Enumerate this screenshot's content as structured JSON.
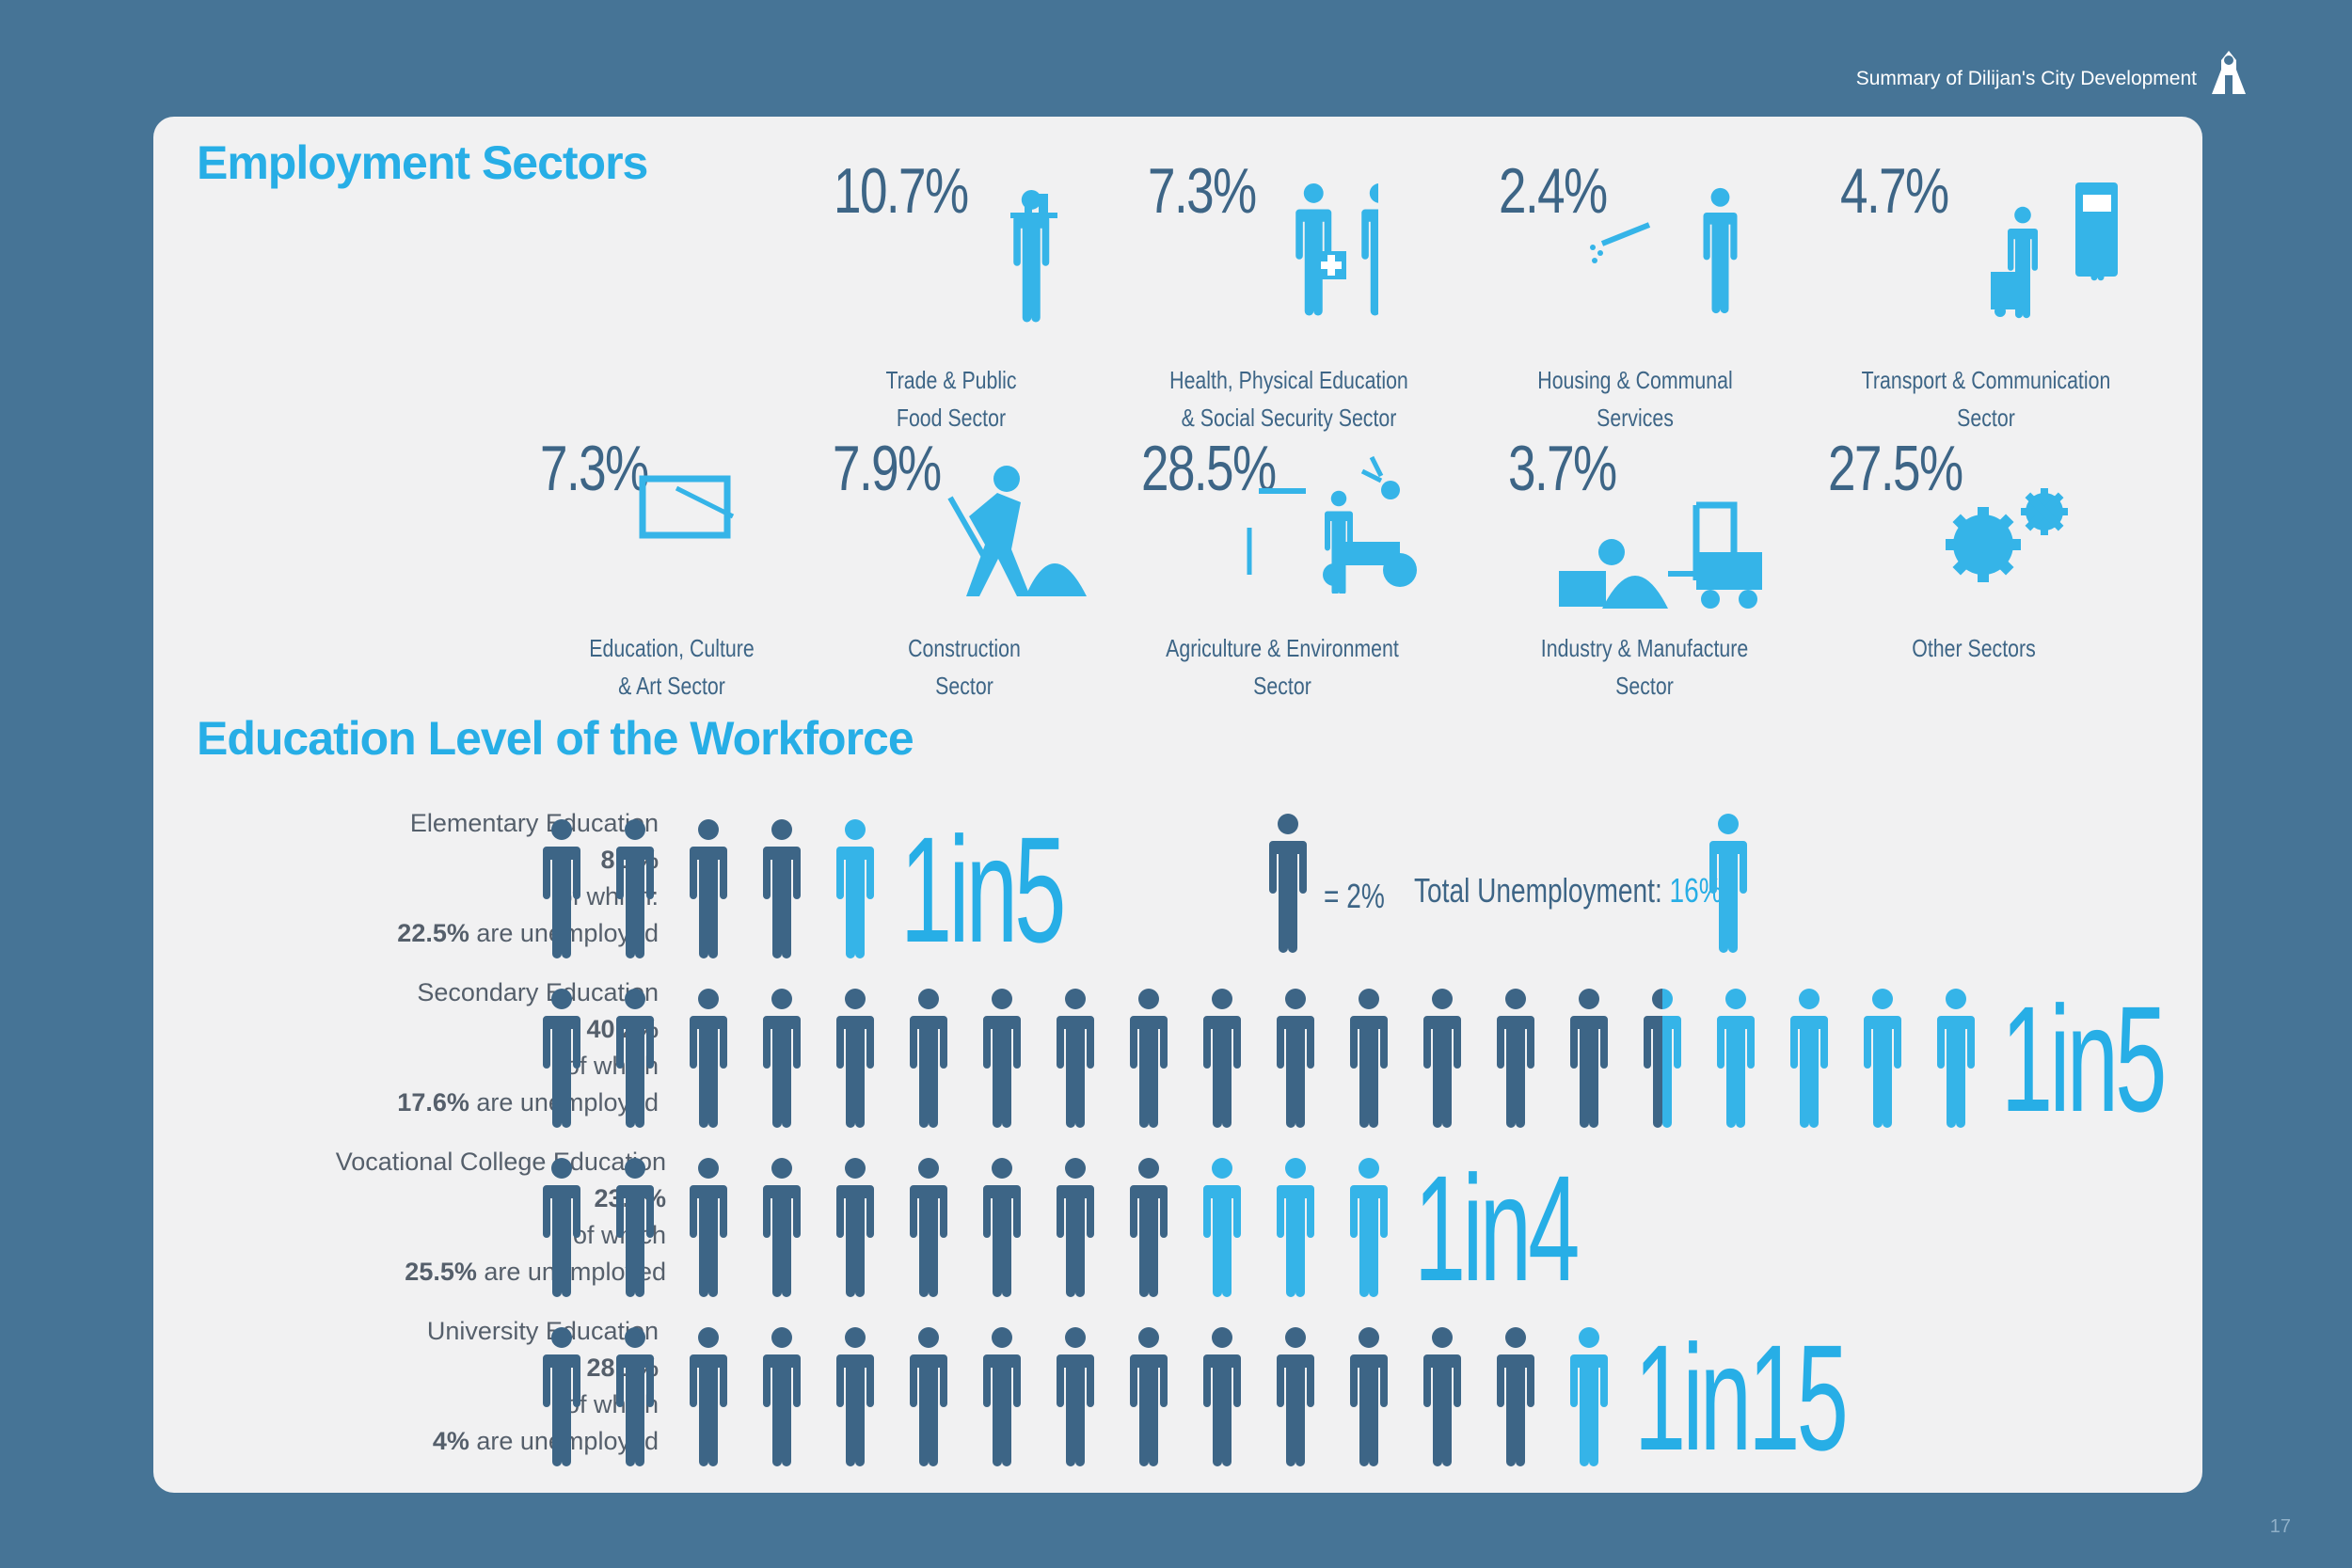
{
  "header": {
    "title": "Summary of Dilijan's City Development",
    "page_number": "17"
  },
  "colors": {
    "background": "#467496",
    "panel": "#f1f1f2",
    "accent": "#27aee6",
    "dark_person": "#3d6586",
    "light_person": "#35b4e8"
  },
  "employment": {
    "title": "Employment Sectors",
    "sectors": [
      {
        "pct": "10.7%",
        "label1": "Trade & Public",
        "label2": "Food Sector",
        "icon": "waiter-icon"
      },
      {
        "pct": "7.3%",
        "label1": "Health, Physical Education",
        "label2": "& Social Security Sector",
        "icon": "health-workers-icon"
      },
      {
        "pct": "2.4%",
        "label1": "Housing & Communal",
        "label2": "Services",
        "icon": "sprayer-worker-icon"
      },
      {
        "pct": "4.7%",
        "label1": "Transport & Communication",
        "label2": "Sector",
        "icon": "transport-worker-icon"
      },
      {
        "pct": "7.3%",
        "label1": "Education, Culture",
        "label2": "& Art Sector",
        "icon": "teacher-icon"
      },
      {
        "pct": "7.9%",
        "label1": "Construction",
        "label2": "Sector",
        "icon": "digger-icon"
      },
      {
        "pct": "28.5%",
        "label1": "Agriculture & Environment",
        "label2": "Sector",
        "icon": "farmer-tractor-icon"
      },
      {
        "pct": "3.7%",
        "label1": "Industry & Manufacture",
        "label2": "Sector",
        "icon": "forklift-icon"
      },
      {
        "pct": "27.5%",
        "label1": "Other Sectors",
        "label2": "",
        "icon": "gears-icon"
      }
    ]
  },
  "education": {
    "title": "Education Level of the Workforce",
    "legend": {
      "unit": "= 2%",
      "total_label": "Total Unemployment: ",
      "total_value": "16%"
    },
    "rows": [
      {
        "name": "Elementary Education",
        "pct": "8.1%",
        "which": "of which:",
        "unemp_pct": "22.5%",
        "unemp_text": " are unemployed",
        "ratio": "1in5",
        "dark": 4,
        "light": 1,
        "split": false
      },
      {
        "name": "Secondary Education",
        "pct": "40.2%",
        "which": "of which",
        "unemp_pct": "17.6%",
        "unemp_text": " are unemployed",
        "ratio": "1in5",
        "dark": 16,
        "light": 4,
        "split": true
      },
      {
        "name": "Vocational College Education",
        "pct": "23.6%",
        "which": "of which",
        "unemp_pct": "25.5%",
        "unemp_text": " are unemployed",
        "ratio": "1in4",
        "dark": 9,
        "light": 3,
        "split": false
      },
      {
        "name": "University Education",
        "pct": "28.1%",
        "which": "of which",
        "unemp_pct": "4%",
        "unemp_text": " are unemployed",
        "ratio": "1in15",
        "dark": 14,
        "light": 1,
        "split": false
      }
    ]
  }
}
